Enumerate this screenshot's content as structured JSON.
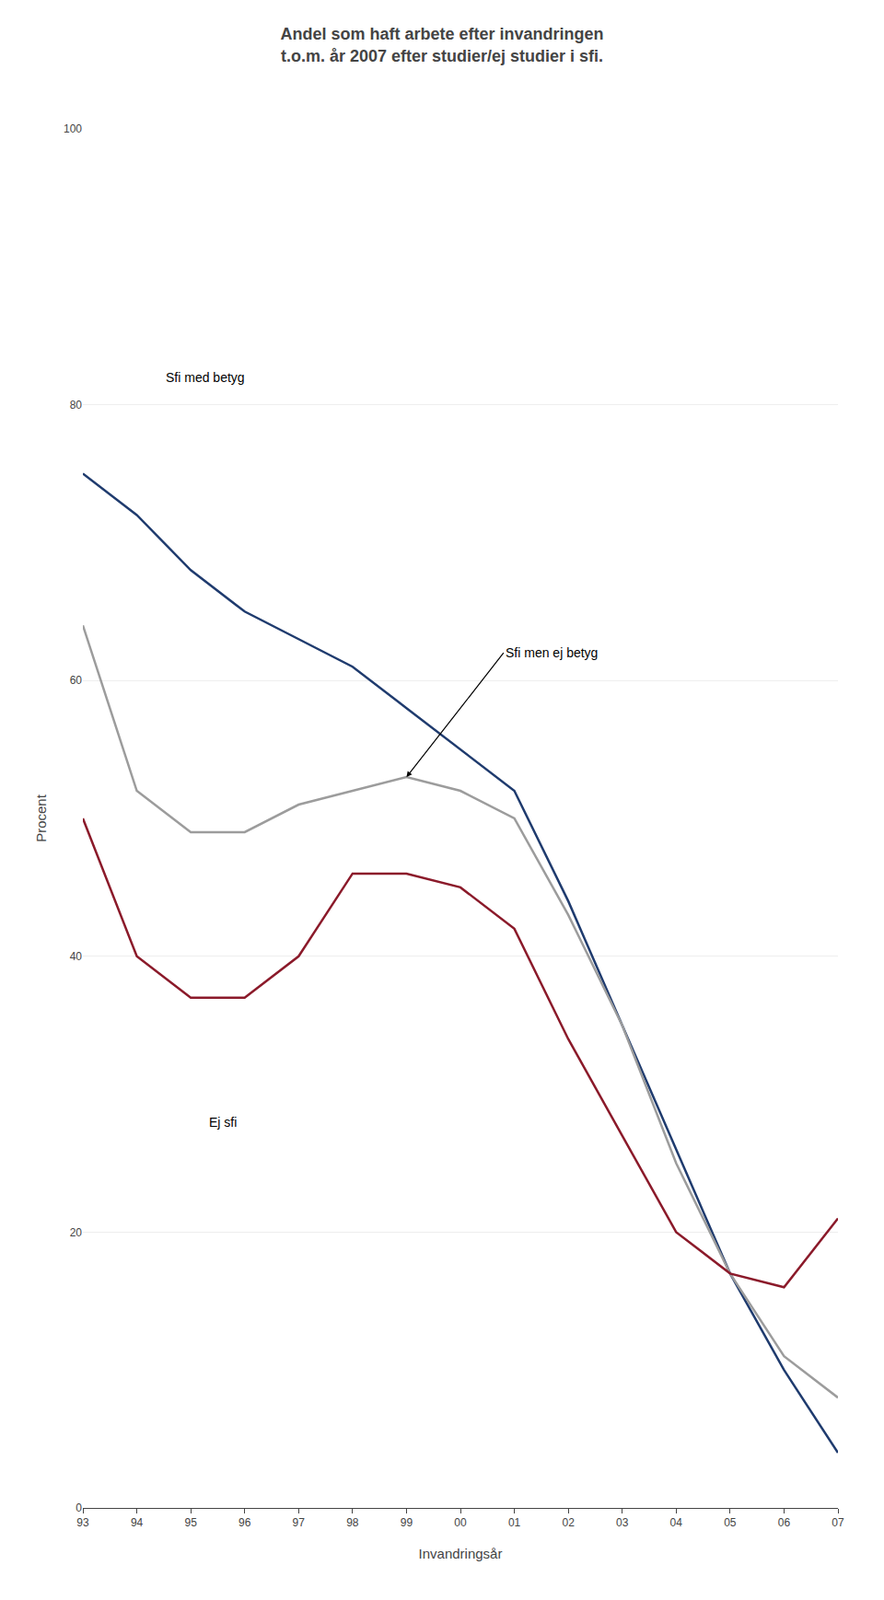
{
  "chart_data": {
    "type": "line",
    "title": "Andel som haft arbete efter invandringen",
    "subtitle": "t.o.m. år 2007 efter studier/ej studier i sfi.",
    "x_label": "Invandringsår",
    "y_label": "Procent",
    "categories": [
      "93",
      "94",
      "95",
      "96",
      "97",
      "98",
      "99",
      "00",
      "01",
      "02",
      "03",
      "04",
      "05",
      "06",
      "07"
    ],
    "series": [
      {
        "name": "Sfi med betyg",
        "color": "#1f3b6e",
        "values": [
          75,
          72,
          68,
          65,
          63,
          61,
          58,
          55,
          52,
          44,
          35,
          26,
          17,
          10,
          4
        ]
      },
      {
        "name": "Sfi men ej betyg",
        "color": "#9c9c9c",
        "values": [
          64,
          52,
          49,
          49,
          51,
          52,
          53,
          52,
          50,
          43,
          35,
          25,
          17,
          11,
          8
        ]
      },
      {
        "name": "Ej sfi",
        "color": "#8b1a2a",
        "values": [
          50,
          40,
          37,
          37,
          40,
          46,
          46,
          45,
          42,
          34,
          27,
          20,
          17,
          16,
          21
        ]
      }
    ],
    "ylim": [
      0,
      100
    ],
    "yticks": [
      0,
      20,
      40,
      60,
      80,
      100
    ],
    "grid": true,
    "annotations": [
      {
        "text": "Sfi med betyg",
        "x": 1.5,
        "y": 82
      },
      {
        "text": "Sfi men ej betyg",
        "x": 7.8,
        "y": 62,
        "arrow_x": 6,
        "arrow_y": 53
      },
      {
        "text": "Ej sfi",
        "x": 2.3,
        "y": 28
      }
    ]
  }
}
